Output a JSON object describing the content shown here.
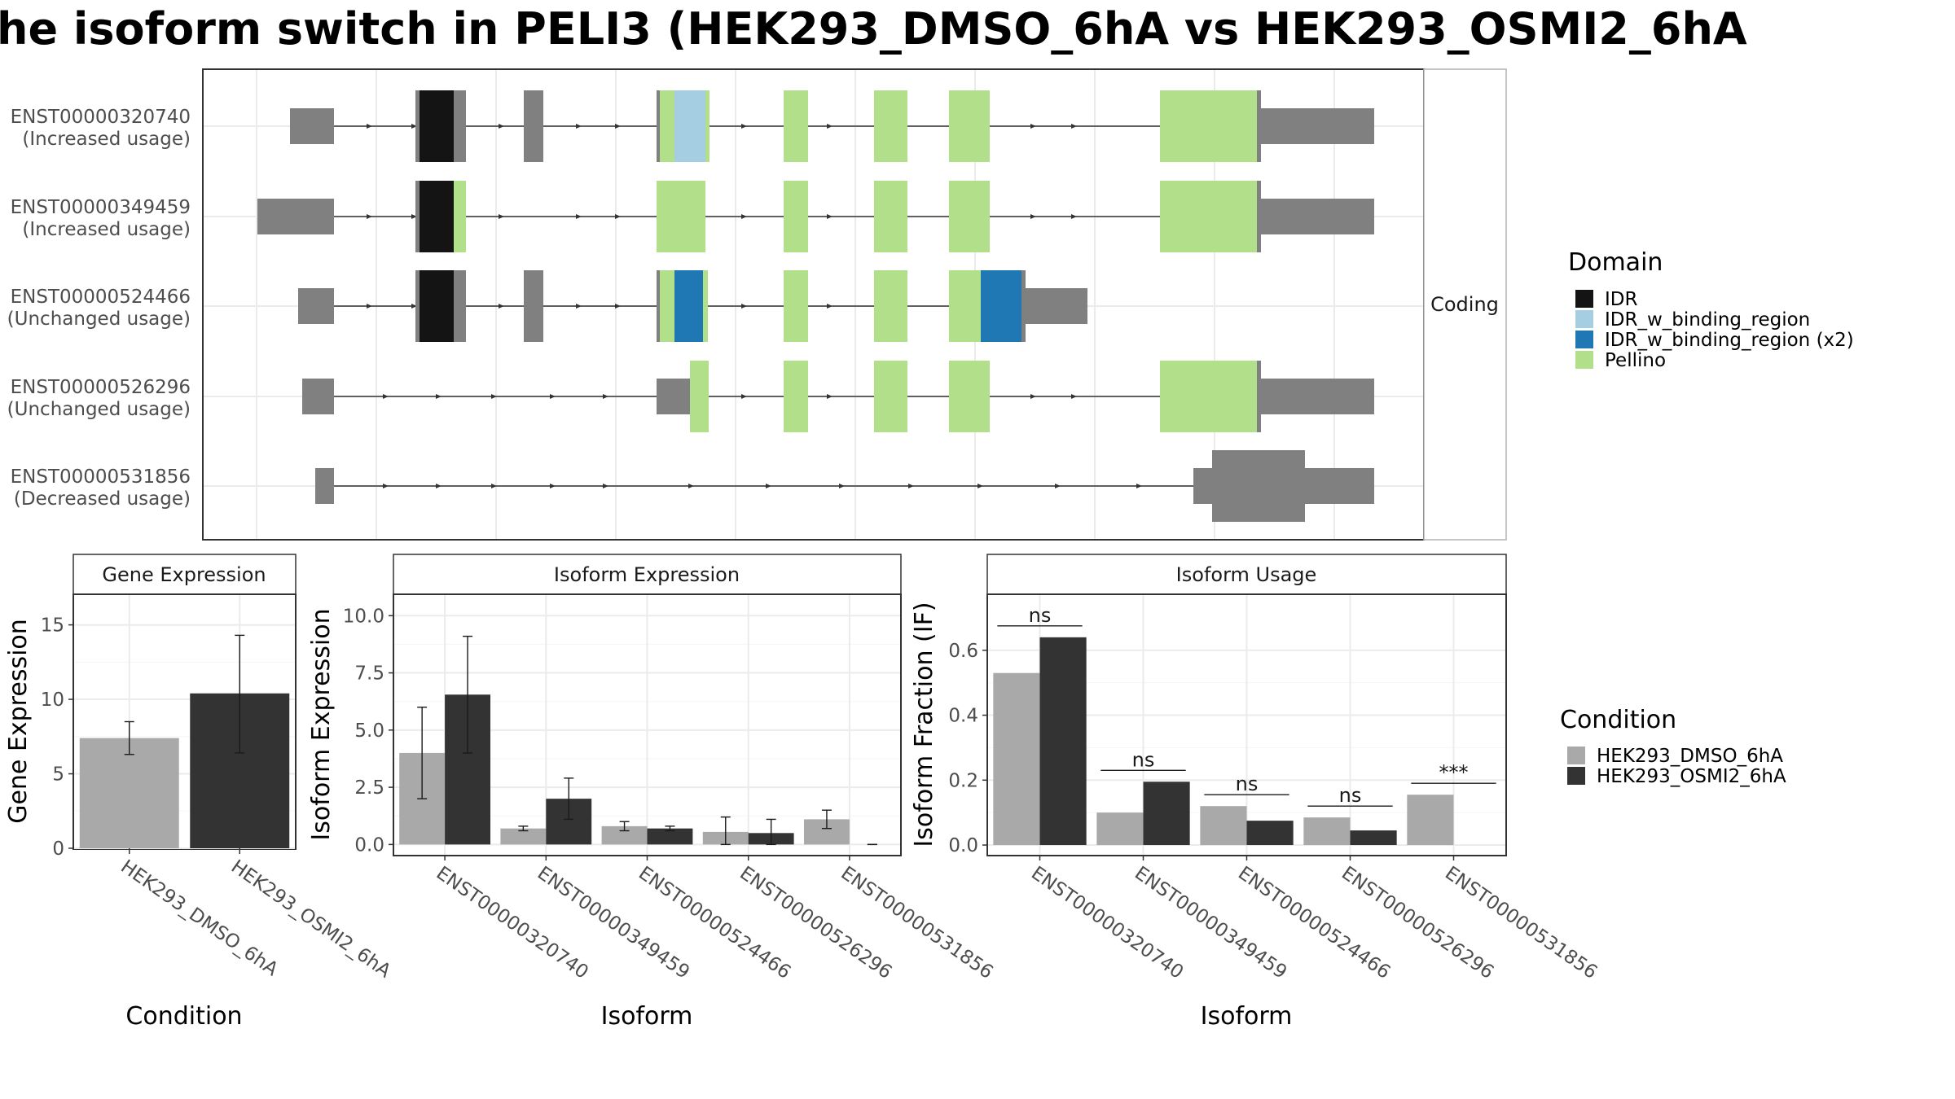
{
  "title": "he isoform switch in PELI3 (HEK293_DMSO_6hA vs HEK293_OSMI2_6hA",
  "structure_panel": {
    "strip_label": "Coding",
    "transcripts": [
      {
        "id": "ENST00000320740",
        "usage": "(Increased usage)"
      },
      {
        "id": "ENST00000349459",
        "usage": "(Increased usage)"
      },
      {
        "id": "ENST00000524466",
        "usage": "(Unchanged usage)"
      },
      {
        "id": "ENST00000526296",
        "usage": "(Unchanged usage)"
      },
      {
        "id": "ENST00000531856",
        "usage": "(Decreased usage)"
      }
    ]
  },
  "domain_legend": {
    "title": "Domain",
    "items": [
      {
        "label": "IDR",
        "color": "#141414"
      },
      {
        "label": "IDR_w_binding_region",
        "color": "#a6cee3"
      },
      {
        "label": "IDR_w_binding_region (x2)",
        "color": "#1f78b4"
      },
      {
        "label": "Pellino",
        "color": "#b2df8a"
      }
    ]
  },
  "condition_legend": {
    "title": "Condition",
    "items": [
      {
        "label": "HEK293_DMSO_6hA",
        "color": "#a9a9a9"
      },
      {
        "label": "HEK293_OSMI2_6hA",
        "color": "#333333"
      }
    ]
  },
  "colors": {
    "utr": "#808080",
    "intron": "#333333"
  },
  "chart_data": [
    {
      "type": "bar",
      "strip": "Gene Expression",
      "xlabel": "Condition",
      "ylabel": "Gene Expression",
      "categories": [
        "HEK293_DMSO_6hA",
        "HEK293_OSMI2_6hA"
      ],
      "values": [
        7.4,
        10.4
      ],
      "error_low": [
        6.3,
        6.4
      ],
      "error_high": [
        8.5,
        14.3
      ],
      "ylim": [
        0,
        17
      ],
      "yticks": [
        0,
        5,
        10,
        15
      ],
      "ytick_labels": [
        "0",
        "5",
        "10",
        "15"
      ]
    },
    {
      "type": "bar",
      "strip": "Isoform Expression",
      "xlabel": "Isoform",
      "ylabel": "Isoform Expression",
      "categories": [
        "ENST00000320740",
        "ENST00000349459",
        "ENST00000524466",
        "ENST00000526296",
        "ENST00000531856"
      ],
      "series": [
        {
          "name": "HEK293_DMSO_6hA",
          "values": [
            4.0,
            0.7,
            0.8,
            0.55,
            1.1
          ],
          "error_low": [
            2.0,
            0.6,
            0.6,
            0.0,
            0.7
          ],
          "error_high": [
            6.0,
            0.8,
            1.0,
            1.2,
            1.5
          ]
        },
        {
          "name": "HEK293_OSMI2_6hA",
          "values": [
            6.55,
            2.0,
            0.7,
            0.5,
            0.0
          ],
          "error_low": [
            4.0,
            1.1,
            0.6,
            0.0,
            0.0
          ],
          "error_high": [
            9.1,
            2.9,
            0.8,
            1.1,
            0.0
          ]
        }
      ],
      "ylim": [
        -0.45,
        10.9
      ],
      "yticks": [
        0,
        2.5,
        5,
        7.5,
        10
      ],
      "ytick_labels": [
        "0.0",
        "2.5",
        "5.0",
        "7.5",
        "10.0"
      ]
    },
    {
      "type": "bar",
      "strip": "Isoform Usage",
      "xlabel": "Isoform",
      "ylabel": "Isoform Fraction (IF)",
      "categories": [
        "ENST00000320740",
        "ENST00000349459",
        "ENST00000524466",
        "ENST00000526296",
        "ENST00000531856"
      ],
      "series": [
        {
          "name": "HEK293_DMSO_6hA",
          "values": [
            0.53,
            0.1,
            0.12,
            0.085,
            0.155
          ]
        },
        {
          "name": "HEK293_OSMI2_6hA",
          "values": [
            0.64,
            0.195,
            0.075,
            0.045,
            0.0
          ]
        }
      ],
      "significance": [
        "ns",
        "ns",
        "ns",
        "ns",
        "***"
      ],
      "ylim": [
        -0.03,
        0.77
      ],
      "yticks": [
        0,
        0.2,
        0.4,
        0.6
      ],
      "ytick_labels": [
        "0.0",
        "0.2",
        "0.4",
        "0.6"
      ]
    }
  ]
}
